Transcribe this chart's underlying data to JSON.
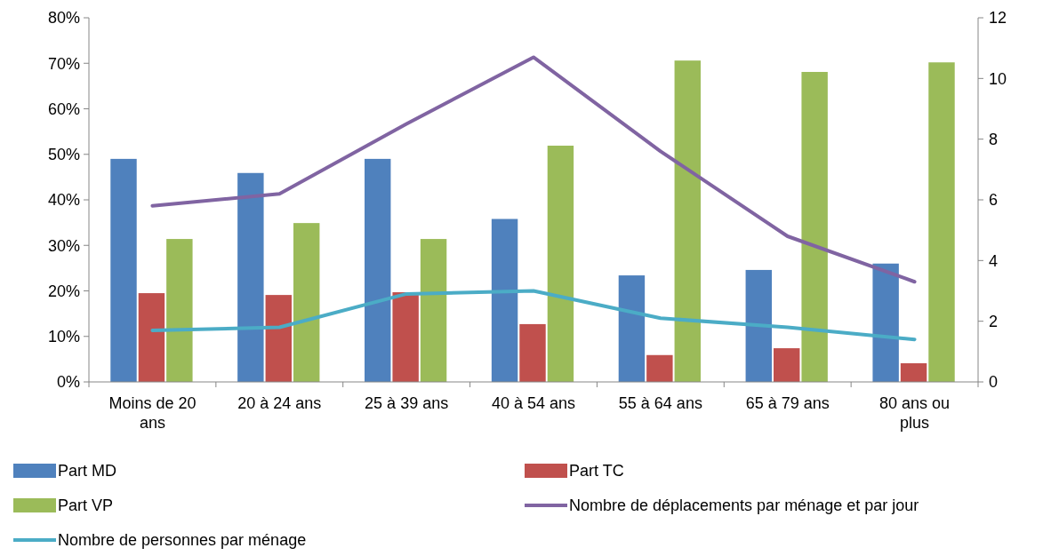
{
  "chart_data": {
    "type": "bar",
    "categories": [
      "Moins de 20 ans",
      "20 à 24 ans",
      "25 à 39 ans",
      "40 à 54 ans",
      "55 à 64 ans",
      "65 à 79 ans",
      "80 ans ou plus"
    ],
    "ylim": [
      0,
      80
    ],
    "yticks": [
      {
        "value": 0,
        "label": "0%"
      },
      {
        "value": 10,
        "label": "10%"
      },
      {
        "value": 20,
        "label": "20%"
      },
      {
        "value": 30,
        "label": "30%"
      },
      {
        "value": 40,
        "label": "40%"
      },
      {
        "value": 50,
        "label": "50%"
      },
      {
        "value": 60,
        "label": "60%"
      },
      {
        "value": 70,
        "label": "70%"
      },
      {
        "value": 80,
        "label": "80%"
      }
    ],
    "y2lim": [
      0,
      12
    ],
    "y2ticks": [
      0,
      2,
      4,
      6,
      8,
      10,
      12
    ],
    "legend": "bottom",
    "grid": false,
    "series": [
      {
        "name": "Part MD",
        "color": "#4f81bd",
        "values": [
          49.0,
          45.9,
          49.0,
          35.8,
          23.4,
          24.6,
          26.0
        ]
      },
      {
        "name": "Part TC",
        "color": "#c0504d",
        "values": [
          19.5,
          19.1,
          19.7,
          12.7,
          5.9,
          7.4,
          4.1
        ]
      },
      {
        "name": "Part VP",
        "color": "#9bbb59",
        "values": [
          31.4,
          34.9,
          31.4,
          51.9,
          70.6,
          68.1,
          70.2
        ]
      },
      {
        "name": "Nombre de déplacements par ménage et par jour",
        "type": "line",
        "axis": "y2",
        "color": "#8064a2",
        "values": [
          5.8,
          6.2,
          8.5,
          10.7,
          7.6,
          4.8,
          3.3
        ]
      },
      {
        "name": "Nombre de personnes par ménage",
        "type": "line",
        "axis": "y2",
        "color": "#4bacc6",
        "values": [
          1.7,
          1.8,
          2.9,
          3.0,
          2.1,
          1.8,
          1.4
        ]
      }
    ]
  }
}
